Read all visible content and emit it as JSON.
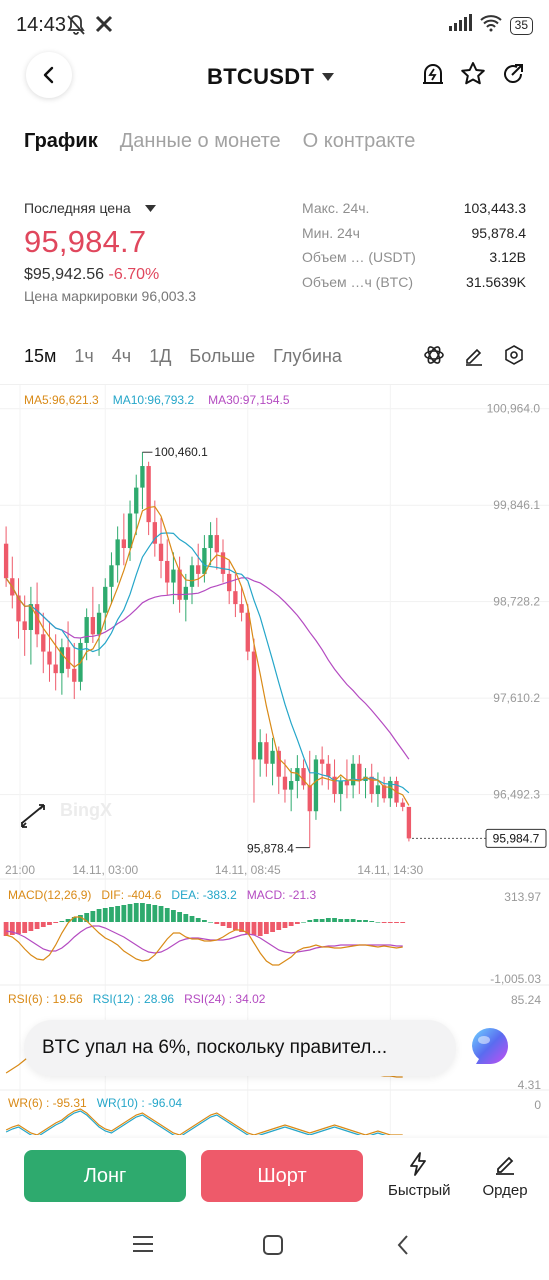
{
  "status_bar": {
    "time": "14:43",
    "battery": "35"
  },
  "header": {
    "pair": "BTCUSDT"
  },
  "tabs": [
    "График",
    "Данные о монете",
    "О контракте"
  ],
  "price": {
    "last_label": "Последняя цена",
    "last_price": "95,984.7",
    "usd_value": "$95,942.56",
    "change_pct": "-6.70%",
    "mark_price": "Цена маркировки 96,003.3"
  },
  "stats": [
    {
      "label": "Макс. 24ч.",
      "value": "103,443.3"
    },
    {
      "label": "Мин. 24ч",
      "value": "95,878.4"
    },
    {
      "label": "Объем … (USDT)",
      "value": "3.12B"
    },
    {
      "label": "Объем …ч (BTC)",
      "value": "31.5639K"
    }
  ],
  "timeframes": [
    "15м",
    "1ч",
    "4ч",
    "1Д",
    "Больше",
    "Глубина"
  ],
  "chart_legend": {
    "ma5": "MA5:96,621.3",
    "ma10": "MA10:96,793.2",
    "ma30": "MA30:97,154.5"
  },
  "chart_labels": {
    "high_marker": "100,460.1",
    "low_marker": "95,878.4",
    "current_price_tag": "95,984.7",
    "watermark": "BingX"
  },
  "macd_legend": {
    "name": "MACD(12,26,9)",
    "dif": "DIF: -404.6",
    "dea": "DEA: -383.2",
    "macd": "MACD: -21.3",
    "scale_top": "313.97",
    "scale_bottom": "-1,005.03"
  },
  "rsi_legend": {
    "rsi6": "RSI(6) : 19.56",
    "rsi12": "RSI(12) : 28.96",
    "rsi24": "RSI(24) : 34.02",
    "scale_top": "85.24",
    "scale_bottom": "4.31"
  },
  "wr_legend": {
    "wr6": "WR(6) : -95.31",
    "wr10": "WR(10) : -96.04",
    "scale_top": "0"
  },
  "news": {
    "text": "BTC упал на 6%, поскольку правител..."
  },
  "actions": {
    "long": "Лонг",
    "short": "Шорт",
    "quick": "Быстрый",
    "order": "Ордер"
  },
  "colors": {
    "up": "#2eaa6e",
    "down": "#ee5a6a",
    "price_red": "#e0475d",
    "ma5": "#d98a17",
    "ma10": "#25a6c9",
    "ma30": "#b44bc1"
  },
  "chart_data": {
    "type": "candlestick",
    "interval": "15м",
    "x_ticks": [
      "21:00",
      "14.11, 03:00",
      "14.11, 08:45",
      "14.11, 14:30"
    ],
    "y_ticks": [
      100964.0,
      99846.1,
      98728.2,
      97610.2,
      96492.3
    ],
    "ylim": [
      95700,
      101100
    ],
    "candles": [
      [
        99400,
        99600,
        98900,
        99000
      ],
      [
        99000,
        99250,
        98650,
        98800
      ],
      [
        98800,
        99000,
        98300,
        98500
      ],
      [
        98500,
        98800,
        98100,
        98400
      ],
      [
        98400,
        98900,
        98000,
        98700
      ],
      [
        98700,
        98950,
        98200,
        98350
      ],
      [
        98350,
        98600,
        97900,
        98150
      ],
      [
        98150,
        98500,
        97800,
        98000
      ],
      [
        98000,
        98350,
        97700,
        97900
      ],
      [
        97900,
        98300,
        97650,
        98200
      ],
      [
        98200,
        98500,
        97850,
        97950
      ],
      [
        97950,
        98250,
        97600,
        97800
      ],
      [
        97800,
        98300,
        97700,
        98250
      ],
      [
        98250,
        98650,
        98050,
        98550
      ],
      [
        98550,
        98900,
        98250,
        98350
      ],
      [
        98350,
        98700,
        98100,
        98600
      ],
      [
        98600,
        99000,
        98400,
        98900
      ],
      [
        98900,
        99300,
        98700,
        99150
      ],
      [
        99150,
        99600,
        98950,
        99450
      ],
      [
        99450,
        99750,
        99150,
        99350
      ],
      [
        99350,
        99900,
        99200,
        99750
      ],
      [
        99750,
        100200,
        99500,
        100050
      ],
      [
        100050,
        100460,
        99800,
        100300
      ],
      [
        100300,
        100350,
        99500,
        99650
      ],
      [
        99650,
        99900,
        99250,
        99400
      ],
      [
        99400,
        99700,
        99000,
        99200
      ],
      [
        99200,
        99450,
        98800,
        98950
      ],
      [
        98950,
        99300,
        98700,
        99100
      ],
      [
        99100,
        99250,
        98600,
        98750
      ],
      [
        98750,
        99050,
        98500,
        98900
      ],
      [
        98900,
        99250,
        98700,
        99150
      ],
      [
        99150,
        99400,
        98900,
        99050
      ],
      [
        99050,
        99500,
        98950,
        99350
      ],
      [
        99350,
        99650,
        99150,
        99500
      ],
      [
        99500,
        99700,
        99100,
        99300
      ],
      [
        99300,
        99450,
        98950,
        99050
      ],
      [
        99050,
        99200,
        98700,
        98850
      ],
      [
        98850,
        99050,
        98550,
        98700
      ],
      [
        98700,
        98900,
        98500,
        98600
      ],
      [
        98600,
        98700,
        98050,
        98150
      ],
      [
        98150,
        98300,
        96400,
        96900
      ],
      [
        96900,
        97250,
        96700,
        97100
      ],
      [
        97100,
        97200,
        96700,
        96850
      ],
      [
        96850,
        97150,
        96600,
        97000
      ],
      [
        97000,
        97050,
        96500,
        96700
      ],
      [
        96700,
        96900,
        96400,
        96550
      ],
      [
        96550,
        96800,
        96300,
        96650
      ],
      [
        96650,
        96950,
        96450,
        96800
      ],
      [
        96800,
        96900,
        96550,
        96600
      ],
      [
        96600,
        97000,
        95878,
        96300
      ],
      [
        96300,
        96950,
        96200,
        96900
      ],
      [
        96900,
        97050,
        96600,
        96850
      ],
      [
        96850,
        96950,
        96550,
        96700
      ],
      [
        96700,
        96900,
        96400,
        96500
      ],
      [
        96500,
        96700,
        96300,
        96650
      ],
      [
        96650,
        96900,
        96450,
        96600
      ],
      [
        96600,
        96950,
        96450,
        96850
      ],
      [
        96850,
        96950,
        96500,
        96650
      ],
      [
        96650,
        96800,
        96450,
        96700
      ],
      [
        96700,
        96850,
        96400,
        96500
      ],
      [
        96500,
        96750,
        96350,
        96600
      ],
      [
        96600,
        96700,
        96400,
        96450
      ],
      [
        96450,
        96700,
        96350,
        96650
      ],
      [
        96650,
        96700,
        96350,
        96400
      ],
      [
        96400,
        96450,
        96300,
        96350
      ],
      [
        96350,
        96350,
        95950,
        95985
      ]
    ],
    "series": [
      {
        "name": "MA5",
        "last": 96621.3
      },
      {
        "name": "MA10",
        "last": 96793.2
      },
      {
        "name": "MA30",
        "last": 97154.5
      }
    ]
  }
}
